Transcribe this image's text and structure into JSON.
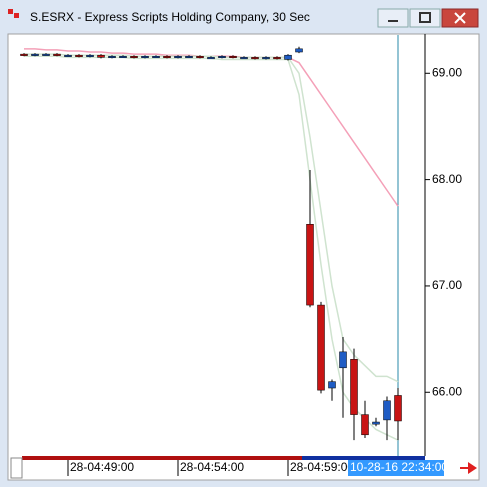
{
  "chart_data": {
    "type": "candlestick",
    "title": "S.ESRX - Express Scripts Holding Company, 30 Sec",
    "categories": [
      null,
      null,
      null,
      null,
      "28-04:49:00",
      null,
      null,
      null,
      null,
      null,
      null,
      null,
      null,
      null,
      "28-04:54:00",
      null,
      null,
      null,
      null,
      null,
      null,
      null,
      null,
      null,
      "28-04:59:00",
      null,
      null,
      null,
      null,
      null,
      null,
      null,
      null,
      null,
      null
    ],
    "cursor_label": "10-28-16 22:34:00",
    "open": [
      69.18,
      69.17,
      69.18,
      69.18,
      69.17,
      69.17,
      69.16,
      69.17,
      69.15,
      69.16,
      69.16,
      69.15,
      69.16,
      69.16,
      69.15,
      69.16,
      69.16,
      69.15,
      69.15,
      69.16,
      69.15,
      69.15,
      69.14,
      69.15,
      69.13,
      69.2,
      67.58,
      66.82,
      66.04,
      66.23,
      66.31,
      65.79,
      65.7,
      65.74,
      65.97
    ],
    "high": [
      69.19,
      69.19,
      69.19,
      69.19,
      69.18,
      69.18,
      69.18,
      69.18,
      69.17,
      69.17,
      69.17,
      69.17,
      69.17,
      69.17,
      69.17,
      69.17,
      69.17,
      69.16,
      69.17,
      69.17,
      69.16,
      69.16,
      69.16,
      69.16,
      69.18,
      69.25,
      68.09,
      66.85,
      66.12,
      66.52,
      66.41,
      65.92,
      65.76,
      65.96,
      66.04
    ],
    "low": [
      69.16,
      69.16,
      69.17,
      69.16,
      69.16,
      69.15,
      69.15,
      69.14,
      69.14,
      69.15,
      69.14,
      69.14,
      69.15,
      69.14,
      69.14,
      69.15,
      69.14,
      69.14,
      69.14,
      69.14,
      69.14,
      69.13,
      69.13,
      69.13,
      69.12,
      69.19,
      66.8,
      65.99,
      65.92,
      65.76,
      65.55,
      65.57,
      65.68,
      65.55,
      65.55
    ],
    "close": [
      69.17,
      69.18,
      69.18,
      69.17,
      69.17,
      69.16,
      69.17,
      69.15,
      69.16,
      69.16,
      69.15,
      69.16,
      69.16,
      69.15,
      69.16,
      69.16,
      69.15,
      69.15,
      69.16,
      69.15,
      69.15,
      69.14,
      69.15,
      69.14,
      69.17,
      69.23,
      66.82,
      66.02,
      66.1,
      66.38,
      65.79,
      65.6,
      65.72,
      65.92,
      65.73
    ],
    "up_color": "#1f5cc4",
    "down_color": "#c81414",
    "lines": [
      {
        "color": "#f4a0b8",
        "values": [
          69.23,
          69.23,
          69.22,
          69.22,
          69.21,
          69.21,
          69.2,
          69.2,
          69.19,
          69.19,
          69.18,
          69.18,
          69.18,
          69.17,
          69.17,
          69.17,
          69.16,
          69.16,
          69.16,
          69.16,
          69.15,
          69.15,
          69.15,
          69.15,
          69.15,
          69.1,
          68.95,
          68.8,
          68.65,
          68.5,
          68.35,
          68.2,
          68.05,
          67.9,
          67.75
        ]
      },
      {
        "color": "#cfe3cf",
        "values": [
          69.18,
          69.18,
          69.18,
          69.18,
          69.17,
          69.17,
          69.17,
          69.17,
          69.17,
          69.17,
          69.16,
          69.16,
          69.16,
          69.16,
          69.16,
          69.16,
          69.16,
          69.16,
          69.15,
          69.15,
          69.15,
          69.15,
          69.15,
          69.15,
          69.15,
          69.0,
          68.4,
          67.7,
          67.0,
          66.5,
          66.35,
          66.25,
          66.15,
          66.15,
          66.1
        ]
      },
      {
        "color": "#cfe3cf",
        "values": [
          69.16,
          69.16,
          69.16,
          69.16,
          69.15,
          69.15,
          69.15,
          69.15,
          69.15,
          69.15,
          69.14,
          69.14,
          69.14,
          69.14,
          69.14,
          69.14,
          69.14,
          69.14,
          69.13,
          69.13,
          69.13,
          69.13,
          69.13,
          69.13,
          69.13,
          68.8,
          68.0,
          67.2,
          66.5,
          66.0,
          65.85,
          65.75,
          65.65,
          65.6,
          65.55
        ]
      }
    ],
    "ylim": [
      65.41,
      69.36
    ],
    "yticks": [
      {
        "value": 66,
        "label": "66.00"
      },
      {
        "value": 67,
        "label": "67.00"
      },
      {
        "value": 68,
        "label": "68.00"
      },
      {
        "value": 69,
        "label": "69.00"
      }
    ]
  }
}
